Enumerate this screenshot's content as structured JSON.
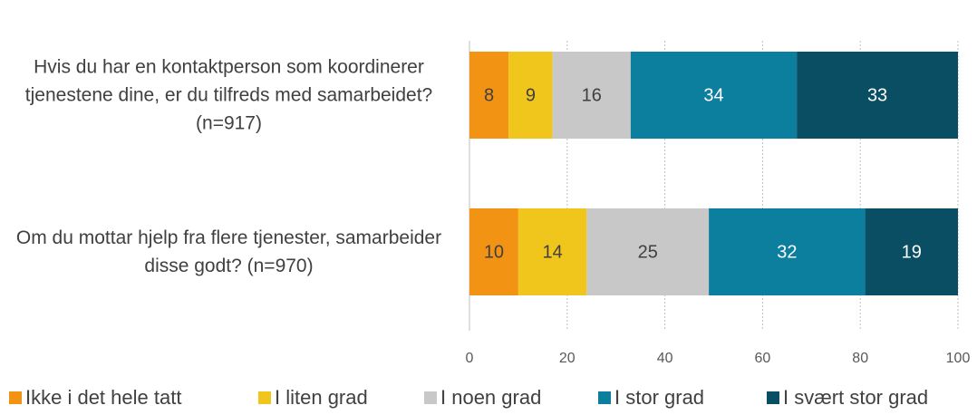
{
  "chart_data": {
    "type": "stacked_bar_horizontal",
    "categories": [
      "Hvis du har en kontaktperson som koordinerer tjenestene dine, er du tilfreds med samarbeidet? (n=917)",
      "Om du mottar hjelp fra flere tjenester, samarbeider disse godt? (n=970)"
    ],
    "series": [
      {
        "name": "Ikke i det hele tatt",
        "color": "#f39313",
        "values": [
          8,
          10
        ]
      },
      {
        "name": "I liten grad",
        "color": "#f0c51c",
        "values": [
          9,
          14
        ]
      },
      {
        "name": "I noen grad",
        "color": "#c8c8c8",
        "values": [
          16,
          25
        ]
      },
      {
        "name": "I stor grad",
        "color": "#0c7e9e",
        "values": [
          34,
          32
        ]
      },
      {
        "name": "I svært stor grad",
        "color": "#0a4e63",
        "values": [
          33,
          19
        ]
      }
    ],
    "xlim": [
      0,
      100
    ],
    "xticks": [
      0,
      20,
      40,
      60,
      80,
      100
    ],
    "grid": true,
    "legend": "bottom"
  }
}
